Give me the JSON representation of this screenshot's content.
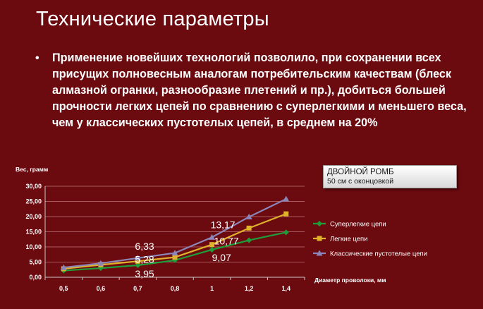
{
  "slide": {
    "title": "Технические параметры",
    "bullet": "Применение новейших технологий позволило, при сохранении всех присущих полновесным аналогам потребительским качествам (блеск алмазной огранки, разнообразие плетений и пр.), добиться большей прочности легких цепей по сравнению с суперлегкими и меньшего веса, чем  у классических пустотелых цепей, в среднем на 20%"
  },
  "info_box": {
    "line1": "ДВОЙНОЙ РОМБ",
    "line2": "50 см с оконцовкой"
  },
  "chart_data": {
    "type": "line",
    "title": "",
    "ylabel": "Вес, грамм",
    "xlabel": "Диаметр проволоки, мм",
    "categories": [
      "0,5",
      "0,6",
      "0,7",
      "0,8",
      "1",
      "1,2",
      "1,4"
    ],
    "ylim": [
      0,
      30
    ],
    "yticks": [
      "0,00",
      "5,00",
      "10,00",
      "15,00",
      "20,00",
      "25,00",
      "30,00"
    ],
    "grid": true,
    "legend_position": "right",
    "series": [
      {
        "name": "Суперлегкие цепи",
        "color": "#1e9e3a",
        "marker": "diamond",
        "values": [
          2.2,
          3.0,
          3.95,
          5.6,
          9.07,
          12.2,
          14.8
        ]
      },
      {
        "name": "Легкие цепи",
        "color": "#e0b12a",
        "marker": "square",
        "values": [
          2.8,
          4.1,
          5.28,
          6.6,
          10.77,
          16.2,
          20.9
        ]
      },
      {
        "name": "Классические пустотелые цепи",
        "color": "#8c86b8",
        "marker": "triangle",
        "values": [
          3.2,
          4.6,
          6.33,
          8.0,
          13.17,
          19.9,
          25.8
        ]
      }
    ],
    "annotations": [
      {
        "text": "6,33",
        "series": 2,
        "index": 2
      },
      {
        "text": "5,28",
        "series": 1,
        "index": 2
      },
      {
        "text": "3,95",
        "series": 0,
        "index": 2
      },
      {
        "text": "13,17",
        "series": 2,
        "index": 4
      },
      {
        "text": "10,77",
        "series": 1,
        "index": 4
      },
      {
        "text": "9,07",
        "series": 0,
        "index": 4
      }
    ]
  }
}
